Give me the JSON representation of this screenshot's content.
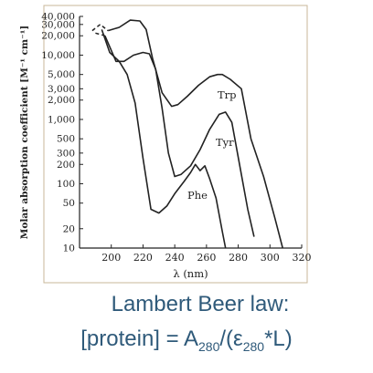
{
  "chart_data": {
    "type": "line",
    "title": "",
    "xlabel": "λ (nm)",
    "ylabel": "Molar absorption coefficient [M⁻¹ cm⁻¹]",
    "xlim": [
      180,
      320
    ],
    "ylim": [
      10,
      40000
    ],
    "yscale": "log",
    "grid": false,
    "x_ticks": [
      "200",
      "220",
      "240",
      "260",
      "280",
      "300",
      "320"
    ],
    "y_ticks": [
      "40,000",
      "30,000",
      "20,000",
      "10,000",
      "5,000",
      "3,000",
      "2,000",
      "1,000",
      "500",
      "300",
      "200",
      "100",
      "50",
      "20",
      "10"
    ],
    "series": [
      {
        "name": "Trp",
        "x": [
          188,
          193,
          198,
          205,
          212,
          218,
          222,
          226,
          232,
          238,
          242,
          248,
          255,
          262,
          267,
          270,
          275,
          282,
          288,
          296,
          303,
          308
        ],
        "y": [
          24000,
          30000,
          24000,
          27000,
          35000,
          34000,
          25000,
          9000,
          2600,
          1600,
          1700,
          2300,
          3400,
          4600,
          5000,
          5000,
          4200,
          3000,
          500,
          130,
          30,
          10
        ]
      },
      {
        "name": "Tyr",
        "x": [
          190,
          196,
          203,
          208,
          214,
          220,
          224,
          228,
          232,
          236,
          240,
          244,
          250,
          256,
          262,
          268,
          272,
          276,
          282,
          286,
          290
        ],
        "y": [
          22000,
          20000,
          8000,
          8000,
          10000,
          11000,
          10500,
          6000,
          1500,
          300,
          130,
          140,
          190,
          340,
          700,
          1200,
          1300,
          900,
          140,
          40,
          15
        ]
      },
      {
        "name": "Phe",
        "x": [
          194,
          199,
          205,
          210,
          215,
          220,
          225,
          230,
          235,
          240,
          246,
          250,
          253,
          256,
          259,
          262,
          266,
          270,
          272
        ],
        "y": [
          25000,
          11000,
          8000,
          5000,
          1800,
          250,
          40,
          35,
          45,
          70,
          110,
          150,
          200,
          160,
          190,
          120,
          60,
          18,
          10
        ]
      }
    ]
  },
  "caption": {
    "line1": "Lambert Beer law:",
    "line2_prefix": "[protein] = A",
    "line2_sub1": "280",
    "line2_mid": "/(ε",
    "line2_sub2": "280",
    "line2_suffix": "*L)"
  },
  "colors": {
    "frame": "#c9b79a",
    "curve": "#222222",
    "caption": "#2f5a7a"
  }
}
